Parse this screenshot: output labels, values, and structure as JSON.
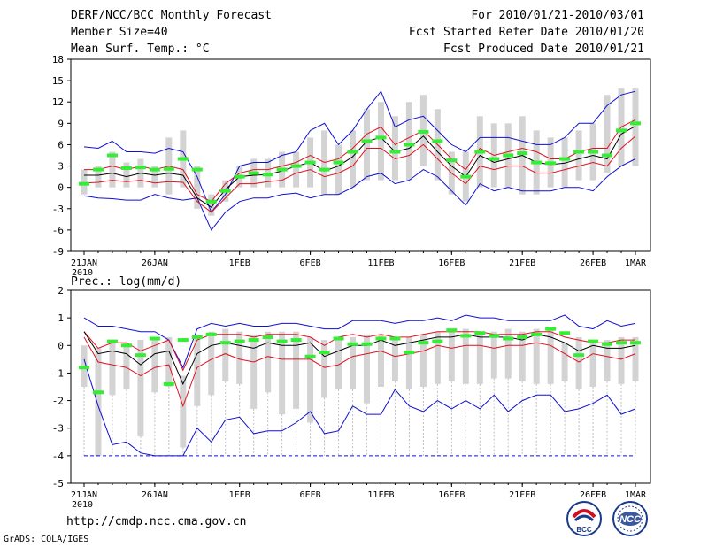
{
  "header": {
    "title": "DERF/NCC/BCC Monthly Forecast",
    "member_size": "Member Size=40",
    "variable": "Mean Surf. Temp.: °C",
    "period": "For 2010/01/21-2010/03/01",
    "fcst_started": "Fcst Started Refer Date 2010/01/20",
    "fcst_produced": "Fcst Produced Date 2010/01/21"
  },
  "footer": {
    "url": "http://cmdp.ncc.cma.gov.cn",
    "grads": "GrADS: COLA/IGES",
    "logo_left": "BCC",
    "logo_right": "NCC"
  },
  "colors": {
    "max_line": "#1010d0",
    "min_line": "#1010d0",
    "spread_line": "#e01020",
    "mean_line": "#000000",
    "box": "#d3d3d3",
    "marker": "#33ee33"
  },
  "chart_data": [
    {
      "type": "line",
      "title": "Mean Surf. Temp.: °C",
      "x_tick_labels": [
        "21JAN\n2010",
        "26JAN",
        "1FEB",
        "6FEB",
        "11FEB",
        "16FEB",
        "21FEB",
        "26FEB",
        "1MAR"
      ],
      "x_tick_days": [
        0,
        5,
        11,
        16,
        21,
        26,
        31,
        36,
        39
      ],
      "ylim": [
        -9,
        18
      ],
      "yticks": [
        -9,
        -6,
        -3,
        0,
        3,
        6,
        9,
        12,
        15,
        18
      ],
      "days": 40,
      "series": [
        {
          "name": "max",
          "values": [
            5.7,
            5.5,
            6.5,
            5,
            5,
            4.8,
            5.5,
            5,
            1.5,
            -3.5,
            -1,
            3,
            3.5,
            3.5,
            4.5,
            5,
            8,
            9,
            6,
            8,
            11,
            13.5,
            8.5,
            9.5,
            10,
            8,
            6,
            5,
            7,
            7,
            7,
            6.5,
            6,
            6,
            7,
            9,
            9,
            11.5,
            13,
            13.5
          ]
        },
        {
          "name": "spread_upper",
          "values": [
            2.5,
            2.5,
            3,
            2.5,
            3,
            2.5,
            3,
            2.5,
            -1,
            -2,
            0.5,
            2,
            2.5,
            2.5,
            3,
            3.5,
            4.5,
            3.5,
            4,
            5.5,
            7.5,
            8.5,
            6,
            7,
            8,
            6,
            4,
            2.5,
            5.5,
            4.5,
            5,
            5.5,
            5,
            4,
            4,
            5,
            5.5,
            5.5,
            8.5,
            9.5
          ]
        },
        {
          "name": "mean",
          "values": [
            1.7,
            1.7,
            2,
            1.5,
            2,
            1.7,
            2,
            1.7,
            -1.5,
            -2.8,
            -0.3,
            1.5,
            1.7,
            1.8,
            2.3,
            3,
            3.5,
            2.3,
            3,
            4.3,
            6.5,
            7,
            5,
            5.5,
            7.2,
            5,
            3,
            1.5,
            4.5,
            3.5,
            4,
            4.5,
            3.5,
            3.2,
            3.4,
            4,
            4.5,
            4,
            7.5,
            8.6
          ]
        },
        {
          "name": "spread_lower",
          "values": [
            0.6,
            0.7,
            1,
            0.8,
            1,
            0.6,
            0.8,
            0.7,
            -2,
            -3.5,
            -1.5,
            0.5,
            0.5,
            0.8,
            1,
            2,
            2.5,
            1.5,
            2,
            3,
            5.5,
            5.5,
            4,
            4.5,
            6,
            4,
            2,
            0.5,
            3,
            2.5,
            3,
            3,
            2,
            2,
            2.5,
            3,
            3.5,
            3,
            5.5,
            7.2
          ]
        },
        {
          "name": "min",
          "values": [
            -1.2,
            -1.5,
            -1.6,
            -1.8,
            -1.8,
            -1,
            -1.5,
            -1.8,
            -1.5,
            -6,
            -3.5,
            -2,
            -1.5,
            -1.5,
            -1,
            -0.8,
            -1.5,
            -1,
            -1,
            0,
            1.5,
            2,
            0.5,
            1,
            2.5,
            1.5,
            -0.5,
            -2.5,
            0.5,
            -0.5,
            0,
            -0.5,
            -0.5,
            -0.5,
            0,
            0,
            -0.5,
            1.5,
            3,
            4
          ]
        },
        {
          "name": "box_high",
          "values": [
            2.5,
            3,
            5,
            3.5,
            4,
            3,
            7,
            8,
            3,
            -1,
            1,
            3,
            4,
            4,
            5,
            5,
            7,
            8,
            6,
            8,
            11,
            12,
            10,
            12,
            13,
            11,
            5,
            5,
            10,
            9,
            9,
            10,
            8,
            7,
            7,
            8,
            9,
            13,
            14,
            14
          ]
        },
        {
          "name": "box_low",
          "values": [
            -1,
            0,
            0,
            0,
            0,
            0,
            -1,
            0,
            -3,
            -4,
            -2,
            0,
            0,
            0,
            0,
            0,
            0,
            -1,
            -1,
            0,
            1,
            1,
            1,
            1,
            3,
            1,
            -1,
            -2,
            0,
            0,
            0,
            -1,
            -1,
            0,
            0,
            1,
            1,
            2,
            3,
            3
          ]
        },
        {
          "name": "marker",
          "values": [
            0.5,
            2.5,
            4.5,
            2.7,
            2.8,
            2.5,
            2.6,
            4,
            2.5,
            -2,
            -0.5,
            1.5,
            2,
            1.8,
            2.5,
            3,
            3.5,
            2.5,
            3.5,
            5,
            6.5,
            7,
            5,
            6,
            7.8,
            6.5,
            3.8,
            1.5,
            5,
            4,
            4.5,
            4.8,
            3.5,
            3.4,
            4,
            5,
            5,
            4.5,
            8,
            9
          ]
        }
      ]
    },
    {
      "type": "line",
      "title": "Prec.: log(mm/d)",
      "x_tick_labels": [
        "21JAN\n2010",
        "26JAN",
        "1FEB",
        "6FEB",
        "11FEB",
        "16FEB",
        "21FEB",
        "26FEB",
        "1MAR"
      ],
      "x_tick_days": [
        0,
        5,
        11,
        16,
        21,
        26,
        31,
        36,
        39
      ],
      "ylim": [
        -5,
        2
      ],
      "yticks": [
        -5,
        -4,
        -3,
        -2,
        -1,
        0,
        1,
        2
      ],
      "days": 40,
      "series": [
        {
          "name": "max",
          "values": [
            1,
            0.7,
            0.7,
            0.6,
            0.5,
            0.5,
            0.2,
            -0.8,
            0.6,
            0.8,
            0.7,
            0.8,
            0.7,
            0.7,
            0.8,
            0.8,
            0.7,
            0.6,
            0.6,
            0.9,
            0.9,
            0.9,
            0.8,
            0.9,
            0.9,
            1,
            0.9,
            1.1,
            1,
            1,
            0.9,
            0.9,
            0.9,
            0.9,
            1.1,
            0.7,
            0.6,
            0.9,
            0.7,
            0.8
          ]
        },
        {
          "name": "spread_upper",
          "values": [
            0.5,
            -0.1,
            0.1,
            0.1,
            -0.2,
            0,
            0.2,
            -0.9,
            0.2,
            0.4,
            0.4,
            0.4,
            0.3,
            0.4,
            0.4,
            0.4,
            0.3,
            0,
            0.3,
            0.4,
            0.3,
            0.4,
            0.3,
            0.3,
            0.4,
            0.5,
            0.5,
            0.5,
            0.5,
            0.4,
            0.4,
            0.4,
            0.5,
            0.5,
            0.3,
            0.2,
            0.1,
            0.1,
            0.2,
            0.2
          ]
        },
        {
          "name": "mean",
          "values": [
            0.5,
            -0.3,
            -0.2,
            -0.3,
            -0.7,
            -0.3,
            -0.2,
            -1.4,
            -0.3,
            0,
            0.1,
            0,
            -0.1,
            0.1,
            0,
            0,
            0.1,
            -0.4,
            -0.2,
            0,
            0,
            0.2,
            0,
            0.1,
            0.2,
            0.3,
            0.3,
            0.4,
            0.3,
            0.3,
            0.3,
            0.2,
            0.4,
            0.3,
            0.1,
            -0.2,
            0,
            -0.1,
            -0.1,
            0
          ]
        },
        {
          "name": "spread_lower",
          "values": [
            0.3,
            -0.6,
            -0.7,
            -0.8,
            -1.1,
            -0.8,
            -0.7,
            -2.2,
            -0.8,
            -0.5,
            -0.3,
            -0.5,
            -0.6,
            -0.4,
            -0.5,
            -0.5,
            -0.5,
            -0.8,
            -0.7,
            -0.4,
            -0.3,
            -0.2,
            -0.4,
            -0.3,
            -0.2,
            0,
            -0.1,
            0,
            0,
            -0.1,
            0,
            0,
            0.1,
            0,
            -0.3,
            -0.6,
            -0.3,
            -0.4,
            -0.5,
            -0.3
          ]
        },
        {
          "name": "min",
          "values": [
            -0.5,
            -2.2,
            -3.6,
            -3.5,
            -3.9,
            -4,
            -4,
            -4,
            -3,
            -3.5,
            -2.7,
            -2.6,
            -3.2,
            -3.1,
            -3.1,
            -2.8,
            -2.4,
            -3.2,
            -3.1,
            -2.2,
            -2.5,
            -2.5,
            -1.6,
            -2.2,
            -2.4,
            -2,
            -2.3,
            -2,
            -2.3,
            -1.8,
            -2.4,
            -2,
            -1.8,
            -1.8,
            -2.4,
            -2.3,
            -2.1,
            -1.8,
            -2.5,
            -2.3
          ]
        },
        {
          "name": "box_high",
          "values": [
            0,
            -0.1,
            0.2,
            0.1,
            0.2,
            0.3,
            0.3,
            -1.1,
            0.4,
            0.5,
            0.6,
            0.5,
            0.4,
            0.5,
            0.5,
            0.5,
            0.3,
            0.2,
            0.3,
            0.3,
            0.4,
            0.4,
            0.3,
            0.3,
            0.4,
            0.5,
            0.5,
            0.6,
            0.5,
            0.5,
            0.6,
            0.5,
            0.6,
            0.6,
            0.1,
            0.3,
            0.2,
            0.2,
            0.3,
            0.3
          ]
        },
        {
          "name": "box_low",
          "values": [
            -1.5,
            -4,
            -1.8,
            -1.6,
            -3.3,
            -1.7,
            -1.5,
            -3.7,
            -2.2,
            -1.8,
            -1.3,
            -1.4,
            -2.3,
            -1.7,
            -2.5,
            -2.3,
            -2.8,
            -1.9,
            -1.6,
            -1.6,
            -2.1,
            -1.5,
            -1.3,
            -1.6,
            -1.5,
            -1.4,
            -1.3,
            -1.4,
            -1.4,
            -1.2,
            -1.2,
            -1.3,
            -1.4,
            -1.4,
            -1.3,
            -1.6,
            -1.5,
            -1.3,
            -1.4,
            -1.3
          ]
        },
        {
          "name": "lower_whisker",
          "values": [
            -4,
            -4,
            -4,
            -4,
            -4,
            -4,
            -4,
            -4,
            -4,
            -4,
            -4,
            -4,
            -4,
            -4,
            -4,
            -4,
            -4,
            -4,
            -4,
            -4,
            -4,
            -4,
            -4,
            -4,
            -4,
            -4,
            -4,
            -4,
            -4,
            -4,
            -4,
            -4,
            -4,
            -4,
            -4,
            -4,
            -4,
            -4,
            -4,
            -4
          ]
        },
        {
          "name": "marker",
          "values": [
            -0.8,
            -1.7,
            0.15,
            0,
            -0.35,
            0.25,
            -1.4,
            0.2,
            0.3,
            0.4,
            0.1,
            0.15,
            0.2,
            0.3,
            0.15,
            0.2,
            -0.4,
            -0.25,
            0.25,
            0.05,
            0.05,
            0.25,
            0.25,
            -0.25,
            0.1,
            0.15,
            0.55,
            0.35,
            0.45,
            0.35,
            0.25,
            0.3,
            0.4,
            0.6,
            0.45,
            -0.35,
            0.15,
            0.05,
            0.1,
            0.1
          ]
        }
      ]
    }
  ]
}
